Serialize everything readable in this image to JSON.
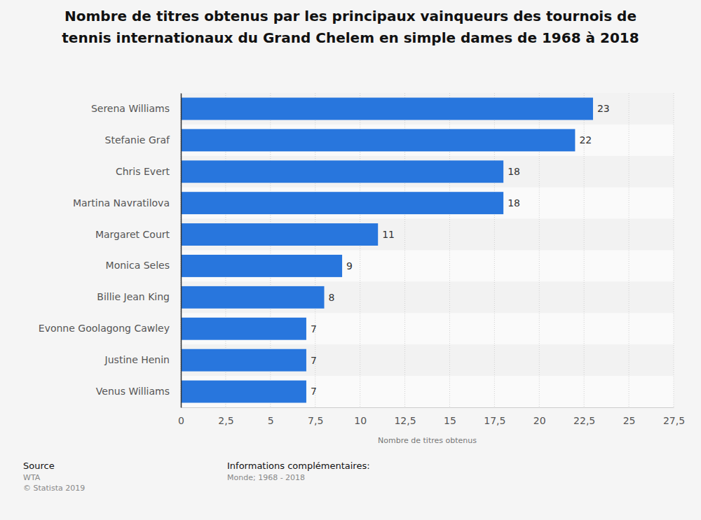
{
  "chart_data": {
    "type": "bar",
    "orientation": "horizontal",
    "title": "Nombre de titres obtenus par les principaux vainqueurs des tournois de tennis internationaux du Grand Chelem en simple dames de 1968 à 2018",
    "x_label": "Nombre de titres obtenus",
    "categories": [
      "Serena Williams",
      "Stefanie Graf",
      "Chris Evert",
      "Martina Navratilova",
      "Margaret Court",
      "Monica Seles",
      "Billie Jean King",
      "Evonne Goolagong Cawley",
      "Justine Henin",
      "Venus Williams"
    ],
    "values": [
      23,
      22,
      18,
      18,
      11,
      9,
      8,
      7,
      7,
      7
    ],
    "color": "#2876dd",
    "data_labels": true,
    "grid": true,
    "xlim": [
      0,
      27.5
    ],
    "xticks": [
      0,
      {
        "value": 2.5,
        "label": "2,5"
      },
      5,
      {
        "value": 7.5,
        "label": "7,5"
      },
      10,
      {
        "value": 12.5,
        "label": "12,5"
      },
      15,
      {
        "value": 17.5,
        "label": "17,5"
      },
      20,
      {
        "value": 22.5,
        "label": "22,5"
      },
      25,
      {
        "value": 27.5,
        "label": "27,5"
      }
    ],
    "source_label": "Source",
    "source": "WTA",
    "copyright": "© Statista 2019",
    "info_label": "Informations complémentaires:",
    "info": "Monde; 1968 - 2018"
  }
}
